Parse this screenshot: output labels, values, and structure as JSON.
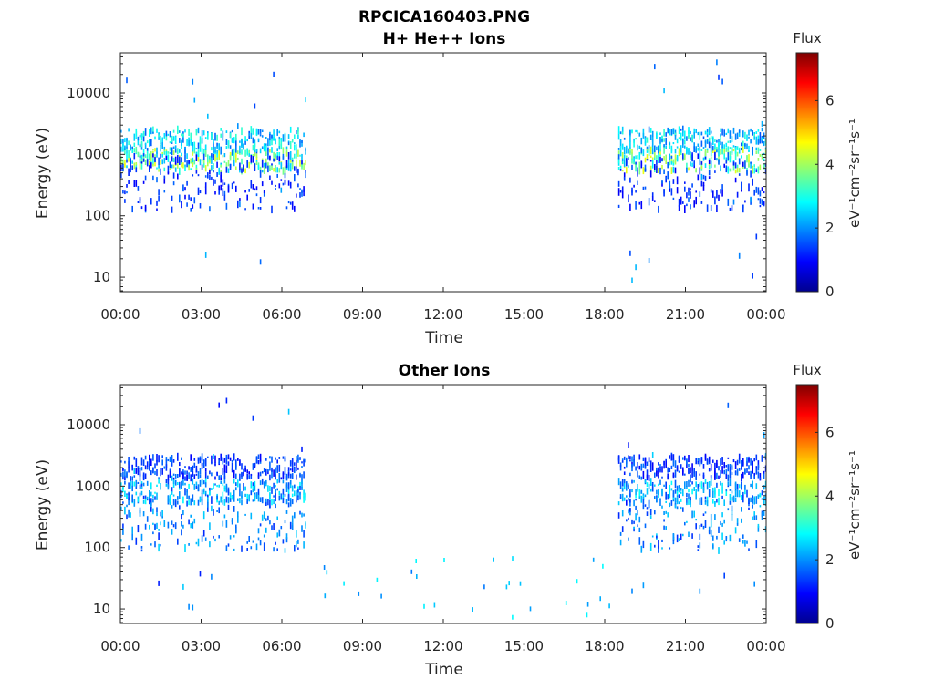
{
  "figure": {
    "title": "RPCICA160403.PNG"
  },
  "colors": {
    "jet": [
      "#00008f",
      "#0000ff",
      "#0080ff",
      "#00ffff",
      "#80ff80",
      "#ffff00",
      "#ff8000",
      "#ff0000",
      "#800000"
    ]
  },
  "chart_data": [
    {
      "type": "heatmap",
      "title": "H+ He++ Ions",
      "xlabel": "Time",
      "ylabel": "Energy (eV)",
      "x_tick_labels": [
        "00:00",
        "03:00",
        "06:00",
        "09:00",
        "12:00",
        "15:00",
        "18:00",
        "21:00",
        "00:00"
      ],
      "x_range_hours": [
        0,
        24
      ],
      "y_scale": "log",
      "y_range": [
        5.8,
        45000
      ],
      "y_ticks": [
        10,
        100,
        1000,
        10000
      ],
      "y_tick_labels": [
        "10",
        "100",
        "1000",
        "10000"
      ],
      "colorbar": {
        "title": "Flux",
        "label": "eV⁻¹cm⁻²sr⁻¹s⁻¹",
        "range": [
          0,
          7.5
        ],
        "ticks": [
          0,
          2,
          4,
          6
        ],
        "tick_labels": [
          "0",
          "2",
          "4",
          "6"
        ]
      },
      "grid": false,
      "intervals": [
        {
          "start": 0.0,
          "end": 6.9
        },
        {
          "start": 18.5,
          "end": 24.0
        }
      ],
      "flux_bands": [
        {
          "energy": 800,
          "flux": 4.0
        },
        {
          "energy": 1700,
          "flux": 2.8
        },
        {
          "energy": 350,
          "flux": 1.5
        }
      ]
    },
    {
      "type": "heatmap",
      "title": "Other Ions",
      "xlabel": "Time",
      "ylabel": "Energy (eV)",
      "x_tick_labels": [
        "00:00",
        "03:00",
        "06:00",
        "09:00",
        "12:00",
        "15:00",
        "18:00",
        "21:00",
        "00:00"
      ],
      "x_range_hours": [
        0,
        24
      ],
      "y_scale": "log",
      "y_range": [
        5.8,
        45000
      ],
      "y_ticks": [
        10,
        100,
        1000,
        10000
      ],
      "y_tick_labels": [
        "10",
        "100",
        "1000",
        "10000"
      ],
      "colorbar": {
        "title": "Flux",
        "label": "eV⁻¹cm⁻²sr⁻¹s⁻¹",
        "range": [
          0,
          7.5
        ],
        "ticks": [
          0,
          2,
          4,
          6
        ],
        "tick_labels": [
          "0",
          "2",
          "4",
          "6"
        ]
      },
      "grid": false,
      "intervals": [
        {
          "start": 0.0,
          "end": 6.9
        },
        {
          "start": 18.5,
          "end": 24.0
        }
      ],
      "flux_bands": [
        {
          "energy": 800,
          "flux": 2.5
        },
        {
          "energy": 2000,
          "flux": 1.6
        },
        {
          "energy": 250,
          "flux": 2.2
        }
      ]
    }
  ]
}
